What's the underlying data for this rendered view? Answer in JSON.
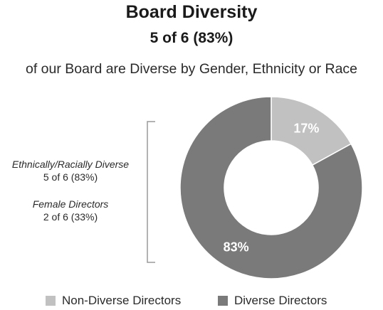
{
  "chart_data": {
    "type": "pie",
    "title": "Board Diversity",
    "subtitle": "5 of 6 (83%)",
    "caption": "of our Board are Diverse by Gender, Ethnicity or Race",
    "donut": true,
    "categories": [
      "Non-Diverse Directors",
      "Diverse Directors"
    ],
    "values": [
      17,
      83
    ],
    "data_labels": [
      "17%",
      "83%"
    ],
    "colors": [
      "#c1c1c1",
      "#7a7a7a"
    ],
    "legend_position": "bottom",
    "annotations": [
      {
        "label": "Ethnically/Racially Diverse",
        "value": "5 of 6 (83%)"
      },
      {
        "label": "Female Directors",
        "value": "2 of 6 (33%)"
      }
    ]
  }
}
